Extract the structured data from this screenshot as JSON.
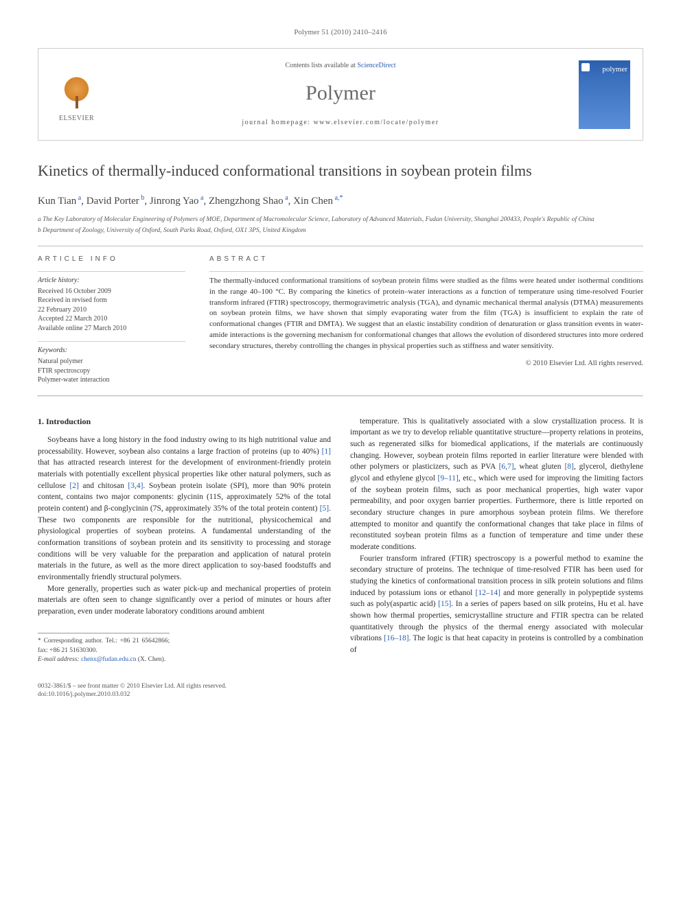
{
  "running_header": "Polymer 51 (2010) 2410–2416",
  "journal_box": {
    "contents_prefix": "Contents lists available at ",
    "contents_link": "ScienceDirect",
    "journal_name": "Polymer",
    "homepage_prefix": "journal homepage: ",
    "homepage_url": "www.elsevier.com/locate/polymer",
    "publisher": "ELSEVIER",
    "cover_text": "polymer"
  },
  "article": {
    "title": "Kinetics of thermally-induced conformational transitions in soybean protein films",
    "authors_html": "Kun Tian <sup>a</sup>, David Porter <sup>b</sup>, Jinrong Yao <sup>a</sup>, Zhengzhong Shao <sup>a</sup>, Xin Chen <sup>a,*</sup>",
    "affiliations": [
      "a The Key Laboratory of Molecular Engineering of Polymers of MOE, Department of Macromolecular Science, Laboratory of Advanced Materials, Fudan University, Shanghai 200433, People's Republic of China",
      "b Department of Zoology, University of Oxford, South Parks Road, Oxford, OX1 3PS, United Kingdom"
    ]
  },
  "meta": {
    "info_heading": "ARTICLE INFO",
    "abstract_heading": "ABSTRACT",
    "history_label": "Article history:",
    "history": [
      "Received 16 October 2009",
      "Received in revised form",
      "22 February 2010",
      "Accepted 22 March 2010",
      "Available online 27 March 2010"
    ],
    "keywords_label": "Keywords:",
    "keywords": [
      "Natural polymer",
      "FTIR spectroscopy",
      "Polymer-water interaction"
    ],
    "abstract": "The thermally-induced conformational transitions of soybean protein films were studied as the films were heated under isothermal conditions in the range 40–100 °C. By comparing the kinetics of protein–water interactions as a function of temperature using time-resolved Fourier transform infrared (FTIR) spectroscopy, thermogravimetric analysis (TGA), and dynamic mechanical thermal analysis (DTMA) measurements on soybean protein films, we have shown that simply evaporating water from the film (TGA) is insufficient to explain the rate of conformational changes (FTIR and DMTA). We suggest that an elastic instability condition of denaturation or glass transition events in water-amide interactions is the governing mechanism for conformational changes that allows the evolution of disordered structures into more ordered secondary structures, thereby controlling the changes in physical properties such as stiffness and water sensitivity.",
    "copyright": "© 2010 Elsevier Ltd. All rights reserved."
  },
  "body": {
    "section_number": "1.",
    "section_title": "Introduction",
    "p1": "Soybeans have a long history in the food industry owing to its high nutritional value and processability. However, soybean also contains a large fraction of proteins (up to 40%) [1] that has attracted research interest for the development of environment-friendly protein materials with potentially excellent physical properties like other natural polymers, such as cellulose [2] and chitosan [3,4]. Soybean protein isolate (SPI), more than 90% protein content, contains two major components: glycinin (11S, approximately 52% of the total protein content) and β-conglycinin (7S, approximately 35% of the total protein content) [5]. These two components are responsible for the nutritional, physicochemical and physiological properties of soybean proteins. A fundamental understanding of the conformation transitions of soybean protein and its sensitivity to processing and storage conditions will be very valuable for the preparation and application of natural protein materials in the future, as well as the more direct application to soy-based foodstuffs and environmentally friendly structural polymers.",
    "p2": "More generally, properties such as water pick-up and mechanical properties of protein materials are often seen to change significantly over a period of minutes or hours after preparation, even under moderate laboratory conditions around ambient",
    "p3": "temperature. This is qualitatively associated with a slow crystallization process. It is important as we try to develop reliable quantitative structure—property relations in proteins, such as regenerated silks for biomedical applications, if the materials are continuously changing. However, soybean protein films reported in earlier literature were blended with other polymers or plasticizers, such as PVA [6,7], wheat gluten [8], glycerol, diethylene glycol and ethylene glycol [9–11], etc., which were used for improving the limiting factors of the soybean protein films, such as poor mechanical properties, high water vapor permeability, and poor oxygen barrier properties. Furthermore, there is little reported on secondary structure changes in pure amorphous soybean protein films. We therefore attempted to monitor and quantify the conformational changes that take place in films of reconstituted soybean protein films as a function of temperature and time under these moderate conditions.",
    "p4": "Fourier transform infrared (FTIR) spectroscopy is a powerful method to examine the secondary structure of proteins. The technique of time-resolved FTIR has been used for studying the kinetics of conformational transition process in silk protein solutions and films induced by potassium ions or ethanol [12–14] and more generally in polypeptide systems such as poly(aspartic acid) [15]. In a series of papers based on silk proteins, Hu et al. have shown how thermal properties, semicrystalline structure and FTIR spectra can be related quantitatively through the physics of the thermal energy associated with molecular vibrations [16–18]. The logic is that heat capacity in proteins is controlled by a combination of"
  },
  "footnote": {
    "corr": "* Corresponding author. Tel.: +86 21 65642866; fax: +86 21 51630300.",
    "email_label": "E-mail address: ",
    "email": "chenx@fudan.edu.cn",
    "email_suffix": " (X. Chen)."
  },
  "footer": {
    "line1": "0032-3861/$ – see front matter © 2010 Elsevier Ltd. All rights reserved.",
    "line2": "doi:10.1016/j.polymer.2010.03.032"
  },
  "colors": {
    "link": "#2a5db0",
    "text": "#333333",
    "heading": "#404040",
    "border": "#cccccc"
  }
}
